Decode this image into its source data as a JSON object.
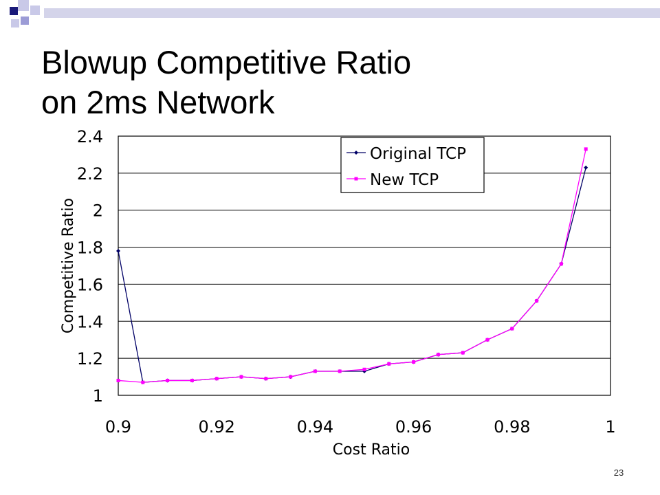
{
  "slide": {
    "title_line1": "Blowup Competitive Ratio",
    "title_line2": "on 2ms Network",
    "page_number": "23",
    "accent_colors": [
      "#1a1a7a",
      "#9c9cd6",
      "#c9c9e8"
    ]
  },
  "chart_data": {
    "type": "line",
    "title": "",
    "xlabel": "Cost Ratio",
    "ylabel": "Competitive Ratio",
    "xlim": [
      0.9,
      1
    ],
    "ylim": [
      1,
      2.4
    ],
    "x_ticks": [
      0.9,
      0.92,
      0.94,
      0.96,
      0.98,
      1
    ],
    "x_tick_labels": [
      "0.9",
      "0.92",
      "0.94",
      "0.96",
      "0.98",
      "1"
    ],
    "y_ticks": [
      1,
      1.2,
      1.4,
      1.6,
      1.8,
      2,
      2.2,
      2.4
    ],
    "y_tick_labels": [
      "1",
      "1.2",
      "1.4",
      "1.6",
      "1.8",
      "2",
      "2.2",
      "2.4"
    ],
    "grid": "horizontal",
    "legend_position": "top-right",
    "series": [
      {
        "name": "Original TCP",
        "color": "#000066",
        "marker": "diamond",
        "x": [
          0.9,
          0.905,
          0.91,
          0.915,
          0.92,
          0.925,
          0.93,
          0.935,
          0.94,
          0.945,
          0.95,
          0.955,
          0.96,
          0.965,
          0.97,
          0.975,
          0.98,
          0.985,
          0.99,
          0.995
        ],
        "y": [
          1.78,
          1.07,
          1.08,
          1.08,
          1.09,
          1.1,
          1.09,
          1.1,
          1.13,
          1.13,
          1.13,
          1.17,
          1.18,
          1.22,
          1.23,
          1.3,
          1.36,
          1.51,
          1.71,
          2.23
        ]
      },
      {
        "name": "New TCP",
        "color": "#ff00ff",
        "marker": "square",
        "x": [
          0.9,
          0.905,
          0.91,
          0.915,
          0.92,
          0.925,
          0.93,
          0.935,
          0.94,
          0.945,
          0.95,
          0.955,
          0.96,
          0.965,
          0.97,
          0.975,
          0.98,
          0.985,
          0.99,
          0.995
        ],
        "y": [
          1.08,
          1.07,
          1.08,
          1.08,
          1.09,
          1.1,
          1.09,
          1.1,
          1.13,
          1.13,
          1.14,
          1.17,
          1.18,
          1.22,
          1.23,
          1.3,
          1.36,
          1.51,
          1.71,
          2.33
        ]
      }
    ]
  }
}
